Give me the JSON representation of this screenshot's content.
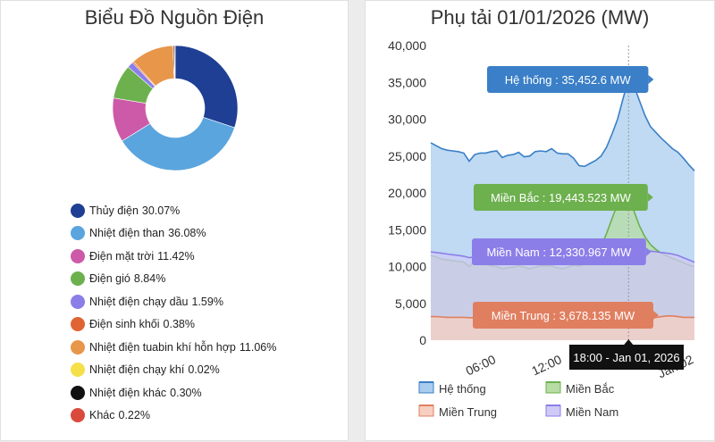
{
  "chart_data": [
    {
      "type": "pie",
      "title": "Biểu Đồ Nguồn Điện",
      "slices": [
        {
          "label": "Thủy điện",
          "value": 30.07,
          "value_label": "30.07%",
          "color": "#1f3f94"
        },
        {
          "label": "Nhiệt điện than",
          "value": 36.08,
          "value_label": "36.08%",
          "color": "#5ba5de"
        },
        {
          "label": "Điện mặt trời",
          "value": 11.42,
          "value_label": "11.42%",
          "color": "#cc5aa8"
        },
        {
          "label": "Điện gió",
          "value": 8.84,
          "value_label": "8.84%",
          "color": "#6db04e"
        },
        {
          "label": "Nhiệt điện chạy dầu",
          "value": 1.59,
          "value_label": "1.59%",
          "color": "#8b7ee8"
        },
        {
          "label": "Điện sinh khối",
          "value": 0.38,
          "value_label": "0.38%",
          "color": "#e06433"
        },
        {
          "label": "Nhiệt điện tuabin khí hỗn hợp",
          "value": 11.06,
          "value_label": "11.06%",
          "color": "#e8964a"
        },
        {
          "label": "Nhiệt điện chạy khí",
          "value": 0.02,
          "value_label": "0.02%",
          "color": "#f5e04a"
        },
        {
          "label": "Nhiệt điện khác",
          "value": 0.3,
          "value_label": "0.30%",
          "color": "#111111"
        },
        {
          "label": "Khác",
          "value": 0.22,
          "value_label": "0.22%",
          "color": "#d94a3d"
        }
      ]
    },
    {
      "type": "area",
      "title": "Phụ tải 01/01/2026 (MW)",
      "ylim": [
        0,
        40000
      ],
      "yticks": [
        "0",
        "5,000",
        "10,000",
        "15,000",
        "20,000",
        "25,000",
        "30,000",
        "35,000",
        "40,000"
      ],
      "xlim_hours": [
        0,
        24
      ],
      "xticks": [
        {
          "hour": 6,
          "label": "06:00"
        },
        {
          "hour": 12,
          "label": "12:00"
        },
        {
          "hour": 24,
          "label": "Jan 02"
        }
      ],
      "x_hours": [
        0,
        0.5,
        1,
        1.5,
        2,
        2.5,
        3,
        3.5,
        4,
        4.5,
        5,
        5.5,
        6,
        6.5,
        7,
        7.5,
        8,
        8.5,
        9,
        9.5,
        10,
        10.5,
        11,
        11.5,
        12,
        12.5,
        13,
        13.5,
        14,
        14.5,
        15,
        15.5,
        16,
        16.5,
        17,
        17.5,
        18,
        18.5,
        19,
        19.5,
        20,
        20.5,
        21,
        21.5,
        22,
        22.5,
        23,
        23.5,
        24
      ],
      "series": [
        {
          "name": "Hệ thống",
          "color": "#3a7fc7",
          "fill": "#a9cdee",
          "values": [
            26800,
            26400,
            26000,
            25800,
            25700,
            25600,
            25400,
            24300,
            25200,
            25400,
            25400,
            25600,
            25700,
            24800,
            25100,
            25200,
            25500,
            24900,
            25000,
            25600,
            25700,
            25600,
            26000,
            25400,
            25300,
            25300,
            24700,
            23700,
            23600,
            24000,
            24400,
            25000,
            26200,
            28000,
            30000,
            32800,
            35452.6,
            34500,
            32500,
            30500,
            29000,
            28200,
            27400,
            26700,
            26000,
            25500,
            24700,
            23800,
            23000
          ]
        },
        {
          "name": "Miền Bắc",
          "color": "#6db04e",
          "fill": "#b7dca4",
          "values": [
            11500,
            11300,
            11000,
            10900,
            10800,
            10700,
            10600,
            10000,
            10700,
            10500,
            10300,
            10100,
            10000,
            9700,
            9800,
            9900,
            10100,
            9900,
            9700,
            9900,
            10100,
            10100,
            10100,
            9800,
            9700,
            9900,
            10200,
            10100,
            10300,
            10700,
            11500,
            12700,
            14500,
            16500,
            18500,
            19900,
            19443.523,
            17500,
            15500,
            14000,
            13000,
            12300,
            11800,
            11400,
            11100,
            10800,
            10500,
            10200,
            10000
          ]
        },
        {
          "name": "Miền Trung",
          "color": "#e07f60",
          "fill": "#f6cfc1",
          "values": [
            3200,
            3200,
            3150,
            3100,
            3100,
            3100,
            3100,
            3050,
            3050,
            3050,
            3050,
            3100,
            3100,
            3000,
            3000,
            3050,
            3050,
            3050,
            3000,
            3050,
            3050,
            3050,
            3000,
            3000,
            2950,
            3000,
            3000,
            3000,
            3100,
            3150,
            3200,
            3300,
            3400,
            3500,
            3550,
            3700,
            3678.135,
            3500,
            3300,
            3200,
            3100,
            3100,
            3200,
            3300,
            3300,
            3200,
            3100,
            3100,
            3100
          ]
        },
        {
          "name": "Miền Nam",
          "color": "#8b7ee8",
          "fill": "#cfc9f5",
          "values": [
            12000,
            11900,
            11800,
            11700,
            11600,
            11500,
            11400,
            11200,
            11300,
            11300,
            11300,
            11300,
            11300,
            11200,
            11200,
            11200,
            11300,
            11200,
            11100,
            11200,
            11300,
            11300,
            11300,
            11100,
            11000,
            11100,
            11300,
            11500,
            11600,
            11700,
            11900,
            12100,
            12300,
            12400,
            12300,
            12400,
            12330.967,
            12200,
            12100,
            12100,
            12100,
            12000,
            11900,
            11800,
            11700,
            11500,
            11200,
            10900,
            10600
          ]
        }
      ],
      "crosshair_hour": 18,
      "tooltips": [
        {
          "text": "Hệ thống : 35,452.6 MW",
          "color": "#3a7fc7"
        },
        {
          "text": "Miền Bắc : 19,443.523 MW",
          "color": "#6db04e"
        },
        {
          "text": "Miền Nam : 12,330.967 MW",
          "color": "#8b7ee8"
        },
        {
          "text": "Miền Trung : 3,678.135 MW",
          "color": "#e07f60"
        }
      ],
      "x_tooltip": "18:00 - Jan 01, 2026",
      "legend": [
        "Hệ thống",
        "Miền Bắc",
        "Miền Trung",
        "Miền Nam"
      ]
    }
  ]
}
